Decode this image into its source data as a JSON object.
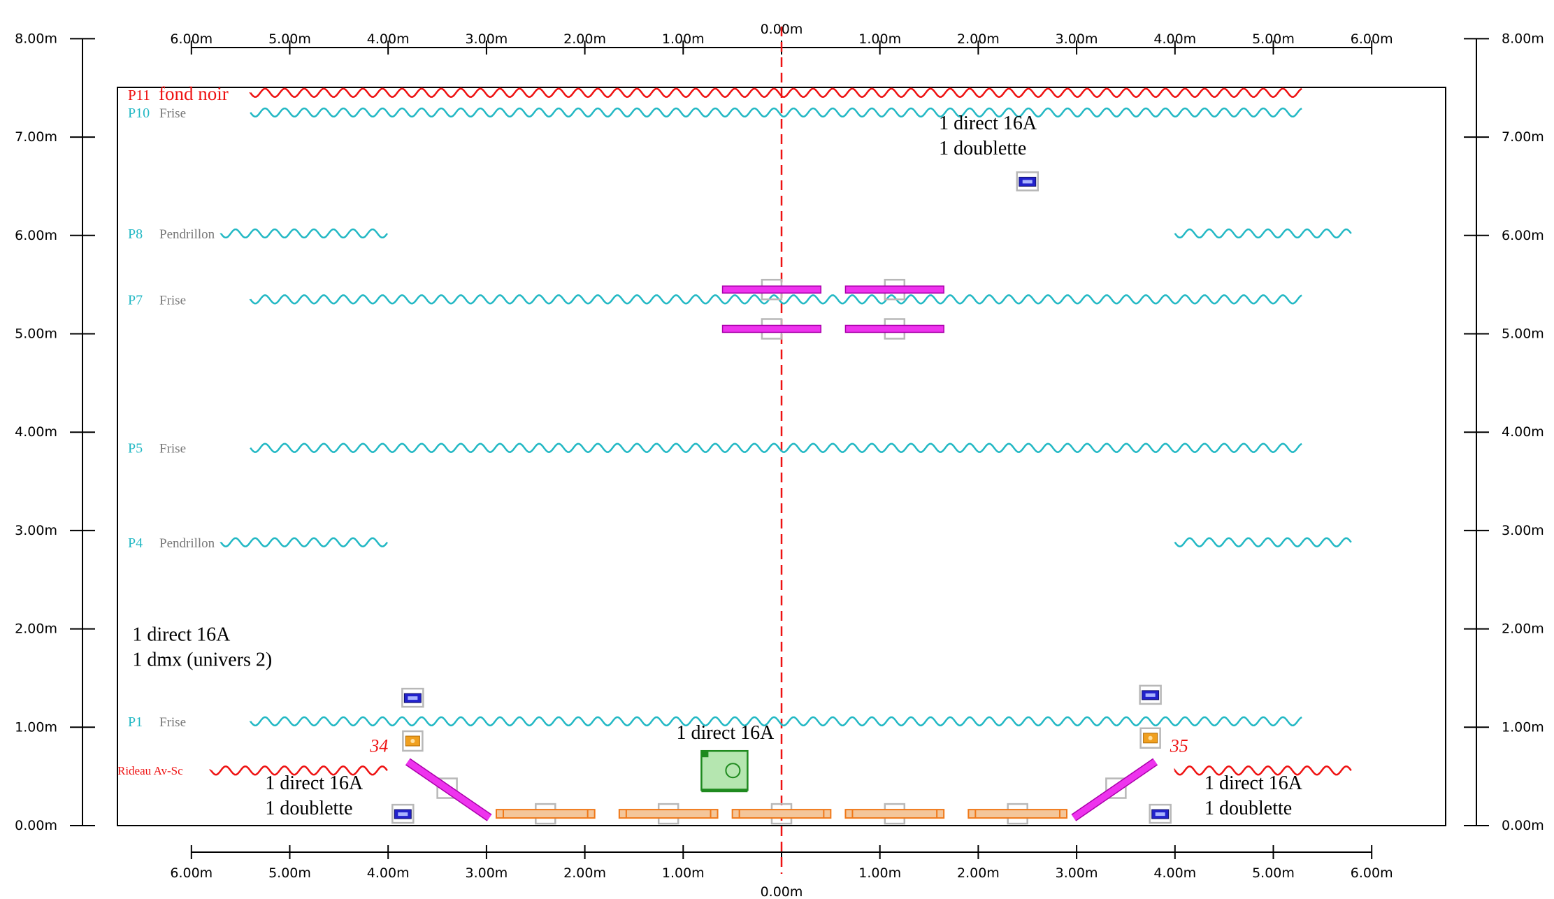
{
  "axes": {
    "vertical_ticks": [
      "0.00m",
      "1.00m",
      "2.00m",
      "3.00m",
      "4.00m",
      "5.00m",
      "6.00m",
      "7.00m",
      "8.00m"
    ],
    "top_ticks": [
      {
        "label": "6.00m",
        "x": -6
      },
      {
        "label": "5.00m",
        "x": -5
      },
      {
        "label": "4.00m",
        "x": -4
      },
      {
        "label": "3.00m",
        "x": -3
      },
      {
        "label": "2.00m",
        "x": -2
      },
      {
        "label": "1.00m",
        "x": -1
      },
      {
        "label": "1.00m",
        "x": 1
      },
      {
        "label": "2.00m",
        "x": 2
      },
      {
        "label": "3.00m",
        "x": 3
      },
      {
        "label": "4.00m",
        "x": 4
      },
      {
        "label": "5.00m",
        "x": 5
      },
      {
        "label": "6.00m",
        "x": 6
      }
    ],
    "bottom_ticks": [
      {
        "label": "6.00m",
        "x": -6
      },
      {
        "label": "5.00m",
        "x": -5
      },
      {
        "label": "4.00m",
        "x": -4
      },
      {
        "label": "3.00m",
        "x": -3
      },
      {
        "label": "2.00m",
        "x": -2
      },
      {
        "label": "1.00m",
        "x": -1
      },
      {
        "label": "1.00m",
        "x": 1
      },
      {
        "label": "2.00m",
        "x": 2
      },
      {
        "label": "3.00m",
        "x": 3
      },
      {
        "label": "4.00m",
        "x": 4
      },
      {
        "label": "5.00m",
        "x": 5
      },
      {
        "label": "6.00m",
        "x": 6
      }
    ],
    "center_label": "0.00m"
  },
  "colors": {
    "cyan": "#22b8c4",
    "red": "#ee1111",
    "magenta": "#ee33ee",
    "orange": "#f07818",
    "orange_fill": "#f4c69a",
    "blue": "#2222cc",
    "green": "#1f8a1f",
    "green_fill": "#b5e6b0",
    "gray": "#b8b8b8",
    "amber": "#f0a020"
  },
  "curtains": [
    {
      "id": "P11",
      "label": "P11",
      "name": "fond noir",
      "color": "red",
      "y": 7.45,
      "segments": [
        [
          -5.4,
          5.3
        ]
      ],
      "big": true
    },
    {
      "id": "P10",
      "label": "P10",
      "name": "Frise",
      "color": "cyan",
      "y": 7.25,
      "segments": [
        [
          -5.4,
          5.3
        ]
      ]
    },
    {
      "id": "P8",
      "label": "P8",
      "name": "Pendrillon",
      "color": "cyan",
      "y": 6.02,
      "segments": [
        [
          -5.7,
          -4.0
        ],
        [
          4.0,
          5.8
        ]
      ]
    },
    {
      "id": "P7",
      "label": "P7",
      "name": "Frise",
      "color": "cyan",
      "y": 5.35,
      "segments": [
        [
          -5.4,
          5.3
        ]
      ]
    },
    {
      "id": "P5",
      "label": "P5",
      "name": "Frise",
      "color": "cyan",
      "y": 3.84,
      "segments": [
        [
          -5.4,
          5.3
        ]
      ]
    },
    {
      "id": "P4",
      "label": "P4",
      "name": "Pendrillon",
      "color": "cyan",
      "y": 2.88,
      "segments": [
        [
          -5.7,
          -4.0
        ],
        [
          4.0,
          5.8
        ]
      ]
    },
    {
      "id": "P1",
      "label": "P1",
      "name": "Frise",
      "color": "cyan",
      "y": 1.06,
      "segments": [
        [
          -5.4,
          5.3
        ]
      ]
    },
    {
      "id": "rideau",
      "label": "Rideau Av-Sc",
      "name": "",
      "color": "red",
      "y": 0.56,
      "segments": [
        [
          -5.8,
          -4.0
        ],
        [
          4.0,
          5.8
        ]
      ],
      "small": true
    }
  ],
  "annotations": [
    {
      "lines": [
        "1 direct 16A",
        "1 doublette"
      ],
      "x": 1.6,
      "y": 7.08
    },
    {
      "lines": [
        "1 direct 16A",
        "1 dmx (univers 2)"
      ],
      "x": -6.6,
      "y": 1.88
    },
    {
      "lines": [
        "1 direct 16A"
      ],
      "x": -1.07,
      "y": 0.88
    },
    {
      "lines": [
        "1 direct 16A",
        "1 doublette"
      ],
      "x": -5.25,
      "y": 0.37
    },
    {
      "lines": [
        "1 direct 16A",
        "1 doublette"
      ],
      "x": 4.3,
      "y": 0.37
    }
  ],
  "circuit_numbers": [
    {
      "label": "34",
      "x": -4.0,
      "y": 0.82
    },
    {
      "label": "35",
      "x": 3.95,
      "y": 0.82
    }
  ],
  "boxes": {
    "blue": [
      {
        "x": 2.5,
        "y": 6.55
      },
      {
        "x": -3.75,
        "y": 1.3
      },
      {
        "x": 3.75,
        "y": 1.33
      },
      {
        "x": -3.85,
        "y": 0.12
      },
      {
        "x": 3.85,
        "y": 0.12
      }
    ],
    "amber": [
      {
        "x": -3.75,
        "y": 0.86
      },
      {
        "x": 3.75,
        "y": 0.89
      }
    ],
    "gray": [
      {
        "x": -0.1,
        "y": 5.45
      },
      {
        "x": 1.15,
        "y": 5.45
      },
      {
        "x": -0.1,
        "y": 5.05
      },
      {
        "x": 1.15,
        "y": 5.05
      },
      {
        "x": -3.4,
        "y": 0.38
      },
      {
        "x": 3.4,
        "y": 0.38
      },
      {
        "x": -2.4,
        "y": 0.12
      },
      {
        "x": -1.15,
        "y": 0.12
      },
      {
        "x": 0.0,
        "y": 0.12
      },
      {
        "x": 1.15,
        "y": 0.12
      },
      {
        "x": 2.4,
        "y": 0.12
      }
    ]
  },
  "magenta_bars": [
    {
      "x1": -0.6,
      "x2": 0.4,
      "y": 5.45
    },
    {
      "x1": 0.65,
      "x2": 1.65,
      "y": 5.45
    },
    {
      "x1": -0.6,
      "x2": 0.4,
      "y": 5.05
    },
    {
      "x1": 0.65,
      "x2": 1.65,
      "y": 5.05
    }
  ],
  "magenta_diagonals": [
    {
      "x1": -3.8,
      "y1": 0.65,
      "x2": -2.97,
      "y2": 0.08
    },
    {
      "x1": 3.8,
      "y1": 0.65,
      "x2": 2.97,
      "y2": 0.08
    }
  ],
  "orange_bars": [
    {
      "x1": -2.9,
      "x2": -1.9
    },
    {
      "x1": -1.65,
      "x2": -0.65
    },
    {
      "x1": -0.5,
      "x2": 0.5
    },
    {
      "x1": 0.65,
      "x2": 1.65
    },
    {
      "x1": 1.9,
      "x2": 2.9
    }
  ],
  "green_device": {
    "x": -0.58,
    "y": 0.56
  }
}
